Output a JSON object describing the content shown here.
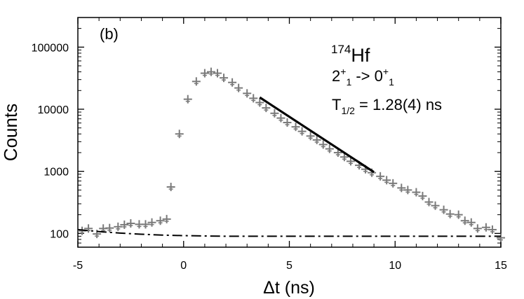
{
  "chart_data": {
    "type": "scatter",
    "panel_label": "(b)",
    "xlabel": "Δt (ns)",
    "ylabel": "Counts",
    "yscale": "log",
    "xlim": [
      -5,
      15
    ],
    "ylim": [
      60,
      300000
    ],
    "x_ticks": [
      -5,
      0,
      5,
      10,
      15
    ],
    "x_tick_labels": [
      "-5",
      "0",
      "5",
      "10",
      "15"
    ],
    "y_ticks": [
      100,
      1000,
      10000,
      100000
    ],
    "y_tick_labels": [
      "100",
      "1000",
      "10000",
      "100000"
    ],
    "annotations": {
      "isotope_mass": "174",
      "isotope_symbol": "Hf",
      "transition_j1": "2",
      "transition_p1": "+",
      "transition_s1": "1",
      "transition_arrow": " -> ",
      "transition_j2": "0",
      "transition_p2": "+",
      "transition_s2": "1",
      "halflife_T": "T",
      "halflife_sub": "1/2",
      "halflife_value": " = 1.28(4) ns"
    },
    "series": [
      {
        "name": "measured counts",
        "style": "gray-cross-markers",
        "x": [
          -4.8,
          -4.5,
          -4.1,
          -3.8,
          -3.5,
          -3.1,
          -2.8,
          -2.5,
          -2.1,
          -1.8,
          -1.5,
          -1.1,
          -0.8,
          -0.6,
          -0.2,
          0.2,
          0.6,
          1.0,
          1.3,
          1.6,
          1.9,
          2.3,
          2.6,
          3.0,
          3.3,
          3.6,
          3.9,
          4.3,
          4.6,
          4.9,
          5.3,
          5.6,
          6.0,
          6.3,
          6.6,
          6.9,
          7.3,
          7.6,
          7.9,
          8.3,
          8.6,
          8.9,
          9.3,
          9.6,
          9.9,
          10.3,
          10.6,
          11.0,
          11.3,
          11.6,
          11.9,
          12.3,
          12.6,
          13.0,
          13.3,
          13.6,
          13.9,
          14.3,
          14.6,
          15.0
        ],
        "y": [
          110,
          120,
          98,
          120,
          122,
          128,
          138,
          145,
          140,
          140,
          150,
          160,
          170,
          560,
          4000,
          14500,
          28000,
          38000,
          40000,
          38000,
          32000,
          27000,
          22000,
          18000,
          15000,
          12800,
          10500,
          8600,
          7200,
          6100,
          5200,
          4400,
          3700,
          3200,
          2700,
          2300,
          2000,
          1700,
          1450,
          1250,
          1080,
          950,
          830,
          720,
          640,
          540,
          500,
          460,
          400,
          320,
          280,
          240,
          205,
          200,
          160,
          150,
          120,
          125,
          115,
          85
        ]
      },
      {
        "name": "exponential fit",
        "style": "solid-black",
        "x": [
          3.6,
          9.0
        ],
        "y": [
          15500,
          970
        ]
      },
      {
        "name": "background",
        "style": "dash-dot-black",
        "x": [
          -5,
          -4,
          -3,
          -2,
          -1,
          0,
          1,
          2,
          4,
          6,
          8,
          10,
          12,
          15
        ],
        "y": [
          115,
          107,
          101,
          97,
          94,
          92,
          91,
          90,
          90,
          90,
          90,
          90,
          90,
          90
        ]
      }
    ]
  }
}
